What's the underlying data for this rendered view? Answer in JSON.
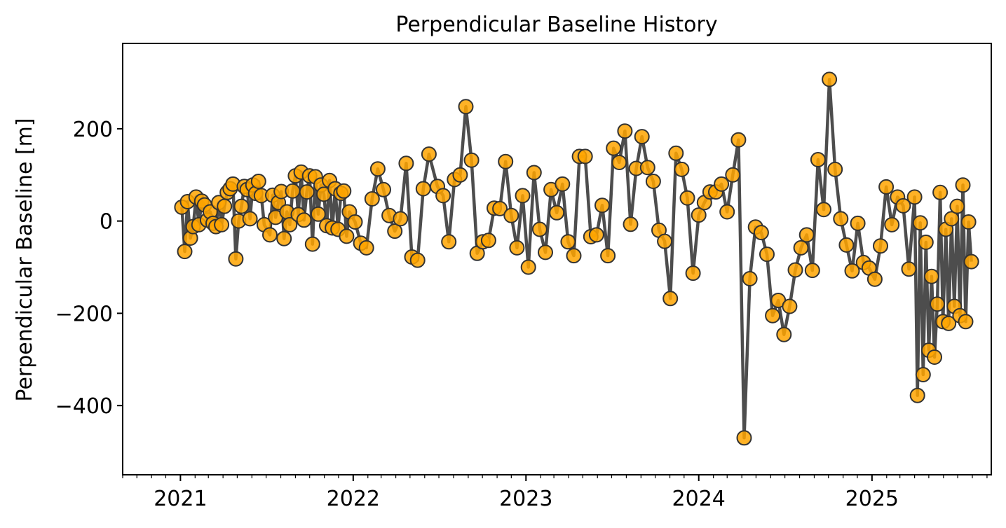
{
  "chart_data": {
    "type": "line",
    "title": "Perpendicular Baseline History",
    "xlabel": "",
    "ylabel": "Perpendicular Baseline [m]",
    "xlim": [
      "2020-09-01",
      "2025-09-10"
    ],
    "ylim": [
      -550,
      385
    ],
    "x_ticks": [
      "2021",
      "2022",
      "2023",
      "2024",
      "2025"
    ],
    "x_tick_dates": [
      "2021-01-01",
      "2022-01-01",
      "2023-01-01",
      "2024-01-01",
      "2025-01-01"
    ],
    "y_ticks": [
      -400,
      -200,
      0,
      200
    ],
    "y_tick_labels": [
      "−400",
      "−200",
      "0",
      "200"
    ],
    "grid": false,
    "legend": "none",
    "colors": {
      "line": "#4d4d4d",
      "marker_fill": "#ffa500",
      "marker_edge": "#333333"
    },
    "series": [
      {
        "points": [
          [
            "2021-01-04",
            30
          ],
          [
            "2021-01-10",
            -66
          ],
          [
            "2021-01-16",
            42
          ],
          [
            "2021-01-22",
            -37
          ],
          [
            "2021-01-28",
            -12
          ],
          [
            "2021-02-03",
            52
          ],
          [
            "2021-02-09",
            -8
          ],
          [
            "2021-02-15",
            43
          ],
          [
            "2021-02-21",
            35
          ],
          [
            "2021-02-27",
            2
          ],
          [
            "2021-03-05",
            20
          ],
          [
            "2021-03-11",
            -5
          ],
          [
            "2021-03-17",
            -12
          ],
          [
            "2021-03-23",
            40
          ],
          [
            "2021-03-29",
            -8
          ],
          [
            "2021-04-04",
            32
          ],
          [
            "2021-04-10",
            62
          ],
          [
            "2021-04-16",
            70
          ],
          [
            "2021-04-22",
            80
          ],
          [
            "2021-04-28",
            -82
          ],
          [
            "2021-05-04",
            0
          ],
          [
            "2021-05-10",
            32
          ],
          [
            "2021-05-16",
            75
          ],
          [
            "2021-05-22",
            68
          ],
          [
            "2021-05-28",
            5
          ],
          [
            "2021-06-03",
            78
          ],
          [
            "2021-06-09",
            60
          ],
          [
            "2021-06-15",
            86
          ],
          [
            "2021-06-21",
            55
          ],
          [
            "2021-06-27",
            -8
          ],
          [
            "2021-07-09",
            -30
          ],
          [
            "2021-07-15",
            56
          ],
          [
            "2021-07-21",
            8
          ],
          [
            "2021-07-27",
            40
          ],
          [
            "2021-08-02",
            64
          ],
          [
            "2021-08-08",
            -38
          ],
          [
            "2021-08-14",
            20
          ],
          [
            "2021-08-20",
            -8
          ],
          [
            "2021-08-26",
            65
          ],
          [
            "2021-09-01",
            98
          ],
          [
            "2021-09-07",
            14
          ],
          [
            "2021-09-13",
            106
          ],
          [
            "2021-09-19",
            2
          ],
          [
            "2021-09-25",
            63
          ],
          [
            "2021-10-01",
            98
          ],
          [
            "2021-10-07",
            -50
          ],
          [
            "2021-10-13",
            96
          ],
          [
            "2021-10-19",
            15
          ],
          [
            "2021-10-25",
            78
          ],
          [
            "2021-10-31",
            58
          ],
          [
            "2021-11-06",
            -10
          ],
          [
            "2021-11-12",
            88
          ],
          [
            "2021-11-18",
            -15
          ],
          [
            "2021-11-24",
            70
          ],
          [
            "2021-11-30",
            -18
          ],
          [
            "2021-12-06",
            60
          ],
          [
            "2021-12-12",
            65
          ],
          [
            "2021-12-18",
            -33
          ],
          [
            "2021-12-24",
            20
          ],
          [
            "2022-01-05",
            -2
          ],
          [
            "2022-01-17",
            -48
          ],
          [
            "2022-01-29",
            -58
          ],
          [
            "2022-02-10",
            48
          ],
          [
            "2022-02-22",
            113
          ],
          [
            "2022-03-06",
            68
          ],
          [
            "2022-03-18",
            12
          ],
          [
            "2022-03-30",
            -22
          ],
          [
            "2022-04-11",
            5
          ],
          [
            "2022-04-23",
            125
          ],
          [
            "2022-05-05",
            -78
          ],
          [
            "2022-05-17",
            -85
          ],
          [
            "2022-05-29",
            70
          ],
          [
            "2022-06-10",
            145
          ],
          [
            "2022-06-28",
            75
          ],
          [
            "2022-07-10",
            55
          ],
          [
            "2022-07-22",
            -45
          ],
          [
            "2022-08-03",
            90
          ],
          [
            "2022-08-15",
            100
          ],
          [
            "2022-08-27",
            248
          ],
          [
            "2022-09-08",
            132
          ],
          [
            "2022-09-20",
            -70
          ],
          [
            "2022-10-02",
            -45
          ],
          [
            "2022-10-14",
            -42
          ],
          [
            "2022-10-26",
            28
          ],
          [
            "2022-11-07",
            27
          ],
          [
            "2022-11-19",
            129
          ],
          [
            "2022-12-01",
            12
          ],
          [
            "2022-12-13",
            -58
          ],
          [
            "2022-12-25",
            55
          ],
          [
            "2023-01-06",
            -100
          ],
          [
            "2023-01-18",
            105
          ],
          [
            "2023-01-30",
            -18
          ],
          [
            "2023-02-11",
            -68
          ],
          [
            "2023-02-23",
            68
          ],
          [
            "2023-03-07",
            18
          ],
          [
            "2023-03-19",
            80
          ],
          [
            "2023-03-31",
            -45
          ],
          [
            "2023-04-12",
            -75
          ],
          [
            "2023-04-24",
            140
          ],
          [
            "2023-05-06",
            140
          ],
          [
            "2023-05-18",
            -34
          ],
          [
            "2023-05-30",
            -30
          ],
          [
            "2023-06-11",
            34
          ],
          [
            "2023-06-23",
            -75
          ],
          [
            "2023-07-05",
            158
          ],
          [
            "2023-07-17",
            127
          ],
          [
            "2023-07-29",
            195
          ],
          [
            "2023-08-10",
            -7
          ],
          [
            "2023-08-22",
            114
          ],
          [
            "2023-09-03",
            183
          ],
          [
            "2023-09-15",
            116
          ],
          [
            "2023-09-27",
            86
          ],
          [
            "2023-10-09",
            -20
          ],
          [
            "2023-10-21",
            -44
          ],
          [
            "2023-11-02",
            -168
          ],
          [
            "2023-11-14",
            147
          ],
          [
            "2023-11-26",
            112
          ],
          [
            "2023-12-08",
            50
          ],
          [
            "2023-12-20",
            -113
          ],
          [
            "2024-01-01",
            13
          ],
          [
            "2024-01-13",
            40
          ],
          [
            "2024-01-25",
            63
          ],
          [
            "2024-02-06",
            63
          ],
          [
            "2024-02-18",
            80
          ],
          [
            "2024-03-01",
            20
          ],
          [
            "2024-03-13",
            100
          ],
          [
            "2024-03-25",
            176
          ],
          [
            "2024-04-06",
            -470
          ],
          [
            "2024-04-18",
            -125
          ],
          [
            "2024-04-30",
            -13
          ],
          [
            "2024-05-12",
            -25
          ],
          [
            "2024-05-24",
            -72
          ],
          [
            "2024-06-05",
            -205
          ],
          [
            "2024-06-17",
            -172
          ],
          [
            "2024-06-29",
            -246
          ],
          [
            "2024-07-11",
            -185
          ],
          [
            "2024-07-23",
            -106
          ],
          [
            "2024-08-04",
            -58
          ],
          [
            "2024-08-16",
            -30
          ],
          [
            "2024-08-28",
            -107
          ],
          [
            "2024-09-09",
            133
          ],
          [
            "2024-09-21",
            25
          ],
          [
            "2024-10-03",
            307
          ],
          [
            "2024-10-15",
            112
          ],
          [
            "2024-10-27",
            5
          ],
          [
            "2024-11-08",
            -52
          ],
          [
            "2024-11-20",
            -108
          ],
          [
            "2024-12-02",
            -5
          ],
          [
            "2024-12-14",
            -90
          ],
          [
            "2024-12-26",
            -102
          ],
          [
            "2025-01-07",
            -126
          ],
          [
            "2025-01-19",
            -54
          ],
          [
            "2025-01-31",
            74
          ],
          [
            "2025-02-12",
            -8
          ],
          [
            "2025-02-24",
            52
          ],
          [
            "2025-03-08",
            33
          ],
          [
            "2025-03-20",
            -104
          ],
          [
            "2025-04-01",
            52
          ],
          [
            "2025-04-07",
            -378
          ],
          [
            "2025-04-13",
            -4
          ],
          [
            "2025-04-19",
            -333
          ],
          [
            "2025-04-25",
            -46
          ],
          [
            "2025-05-01",
            -280
          ],
          [
            "2025-05-07",
            -120
          ],
          [
            "2025-05-13",
            -295
          ],
          [
            "2025-05-19",
            -180
          ],
          [
            "2025-05-25",
            62
          ],
          [
            "2025-05-31",
            -218
          ],
          [
            "2025-06-06",
            -18
          ],
          [
            "2025-06-12",
            -222
          ],
          [
            "2025-06-18",
            5
          ],
          [
            "2025-06-24",
            -185
          ],
          [
            "2025-06-30",
            32
          ],
          [
            "2025-07-06",
            -205
          ],
          [
            "2025-07-12",
            78
          ],
          [
            "2025-07-18",
            -218
          ],
          [
            "2025-07-24",
            -2
          ],
          [
            "2025-07-30",
            -88
          ]
        ]
      }
    ]
  }
}
